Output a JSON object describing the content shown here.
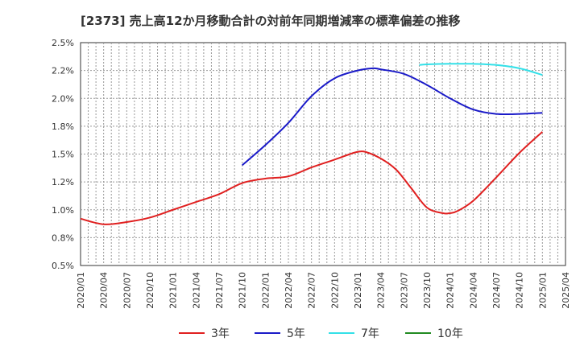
{
  "chart_data": {
    "type": "line",
    "title": "[2373]  売上高12か月移動合計の対前年同期増減率の標準偏差の推移",
    "xlabel": "",
    "ylabel": "",
    "x_ticks": [
      "2020/01",
      "2020/04",
      "2020/07",
      "2020/10",
      "2021/01",
      "2021/04",
      "2021/07",
      "2021/10",
      "2022/01",
      "2022/04",
      "2022/07",
      "2022/10",
      "2023/01",
      "2023/04",
      "2023/07",
      "2023/10",
      "2024/01",
      "2024/04",
      "2024/07",
      "2024/10",
      "2025/01",
      "2025/04"
    ],
    "y_ticks": [
      "0.5%",
      "0.8%",
      "1.0%",
      "1.2%",
      "1.5%",
      "1.8%",
      "2.0%",
      "2.2%",
      "2.5%"
    ],
    "ylim": [
      0.5,
      2.5
    ],
    "grid": true,
    "legend_position": "bottom",
    "series": [
      {
        "name": "3年",
        "color": "#e02020",
        "x": [
          "2020/01",
          "2020/04",
          "2020/07",
          "2020/10",
          "2021/01",
          "2021/04",
          "2021/07",
          "2021/10",
          "2022/01",
          "2022/04",
          "2022/07",
          "2022/10",
          "2022/12",
          "2023/01",
          "2023/02",
          "2023/04",
          "2023/06",
          "2023/08",
          "2023/10",
          "2023/12",
          "2024/01",
          "2024/02",
          "2024/04",
          "2024/07",
          "2024/10",
          "2025/01"
        ],
        "values": [
          0.92,
          0.87,
          0.89,
          0.93,
          1.0,
          1.07,
          1.14,
          1.24,
          1.28,
          1.3,
          1.38,
          1.45,
          1.5,
          1.52,
          1.52,
          1.46,
          1.36,
          1.19,
          1.02,
          0.97,
          0.97,
          0.99,
          1.08,
          1.29,
          1.51,
          1.7
        ]
      },
      {
        "name": "5年",
        "color": "#1a1ac8",
        "x": [
          "2021/10",
          "2022/01",
          "2022/04",
          "2022/07",
          "2022/10",
          "2023/01",
          "2023/03",
          "2023/04",
          "2023/07",
          "2023/10",
          "2024/01",
          "2024/04",
          "2024/07",
          "2024/10",
          "2025/01"
        ],
        "values": [
          1.4,
          1.58,
          1.78,
          2.02,
          2.18,
          2.25,
          2.27,
          2.26,
          2.22,
          2.12,
          2.0,
          1.9,
          1.86,
          1.86,
          1.87
        ]
      },
      {
        "name": "7年",
        "color": "#33e0e8",
        "x": [
          "2023/09",
          "2023/10",
          "2024/01",
          "2024/04",
          "2024/07",
          "2024/10",
          "2025/01"
        ],
        "values": [
          2.3,
          2.305,
          2.31,
          2.31,
          2.3,
          2.27,
          2.21
        ]
      },
      {
        "name": "10年",
        "color": "#228b22",
        "x": [],
        "values": []
      }
    ]
  }
}
